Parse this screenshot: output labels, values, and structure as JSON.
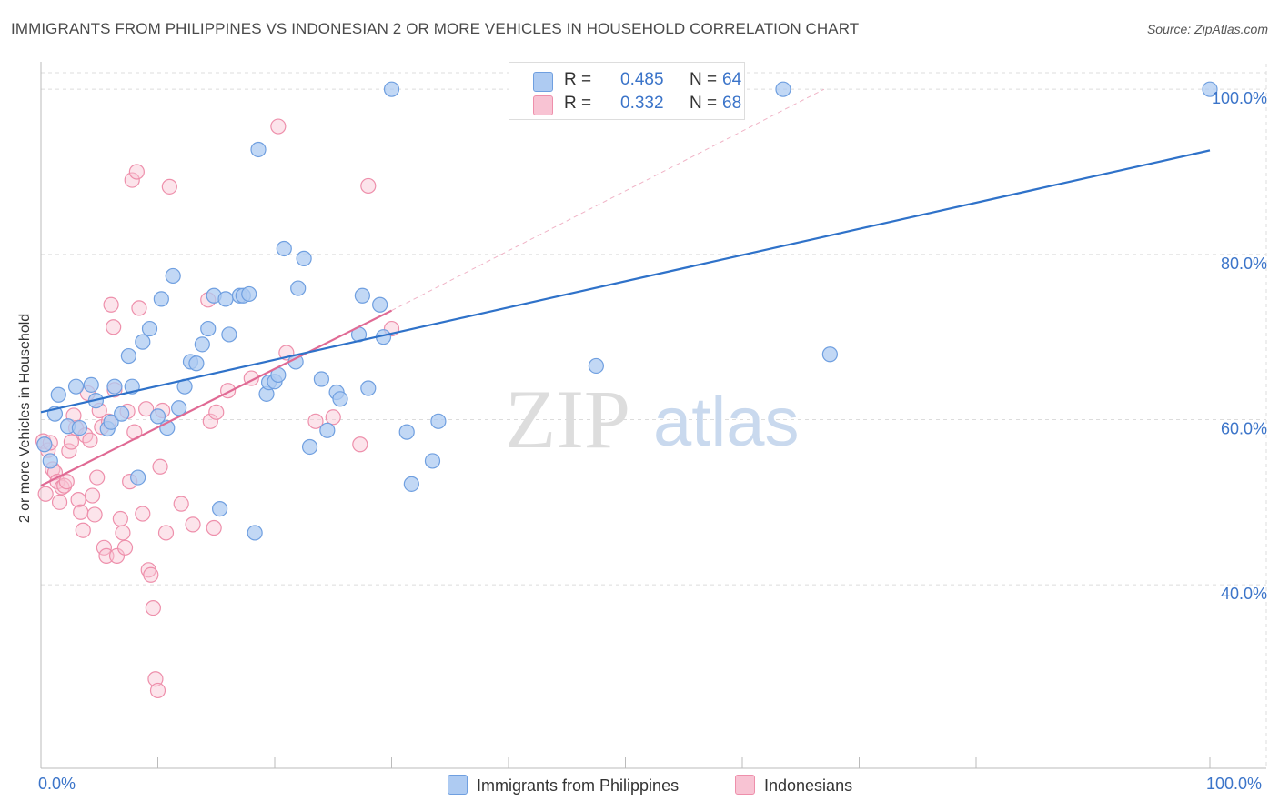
{
  "chart_data": {
    "type": "scatter",
    "title": "IMMIGRANTS FROM PHILIPPINES VS INDONESIAN 2 OR MORE VEHICLES IN HOUSEHOLD CORRELATION CHART",
    "source": "Source: ZipAtlas.com",
    "ylabel": "2 or more Vehicles in Household",
    "xlabel": "",
    "xlim": [
      0,
      100
    ],
    "ylim": [
      18,
      102
    ],
    "y_ticks": [
      40,
      60,
      80,
      100
    ],
    "y_tick_labels": [
      "40.0%",
      "60.0%",
      "80.0%",
      "100.0%"
    ],
    "x_tick_labels": [
      "0.0%",
      "100.0%"
    ],
    "watermark": {
      "zip": "ZIP",
      "atlas": "atlas"
    },
    "legend_stats": [
      {
        "r_label": "R =",
        "r_value": "0.485",
        "n_label": "N =",
        "n_value": "64"
      },
      {
        "r_label": "R =",
        "r_value": "0.332",
        "n_label": "N =",
        "n_value": "68"
      }
    ],
    "series": [
      {
        "name": "Immigrants from Philippines",
        "color": "#6f9fe0",
        "fill": "#aecbf2",
        "line_color": "#2f72c9",
        "trend": {
          "x": [
            0,
            100
          ],
          "y": [
            60.9,
            92.6
          ]
        },
        "points": [
          [
            0.3,
            57.0
          ],
          [
            0.8,
            55.0
          ],
          [
            1.5,
            63.0
          ],
          [
            1.2,
            60.7
          ],
          [
            2.3,
            59.2
          ],
          [
            3.0,
            64.0
          ],
          [
            3.3,
            59.0
          ],
          [
            4.3,
            64.2
          ],
          [
            4.7,
            62.3
          ],
          [
            5.7,
            58.9
          ],
          [
            6.0,
            59.7
          ],
          [
            6.3,
            64.0
          ],
          [
            6.9,
            60.7
          ],
          [
            7.5,
            67.7
          ],
          [
            7.8,
            64.0
          ],
          [
            8.3,
            53.0
          ],
          [
            8.7,
            69.4
          ],
          [
            9.3,
            71.0
          ],
          [
            10.0,
            60.4
          ],
          [
            10.3,
            74.6
          ],
          [
            10.8,
            59.0
          ],
          [
            11.3,
            77.4
          ],
          [
            11.8,
            61.4
          ],
          [
            12.3,
            64.0
          ],
          [
            12.8,
            67.0
          ],
          [
            13.3,
            66.8
          ],
          [
            13.8,
            69.1
          ],
          [
            14.3,
            71.0
          ],
          [
            14.8,
            75.0
          ],
          [
            15.3,
            49.2
          ],
          [
            15.8,
            74.6
          ],
          [
            16.1,
            70.3
          ],
          [
            17.0,
            75.0
          ],
          [
            17.3,
            75.0
          ],
          [
            17.8,
            75.2
          ],
          [
            18.3,
            46.3
          ],
          [
            18.6,
            92.7
          ],
          [
            19.3,
            63.1
          ],
          [
            19.5,
            64.5
          ],
          [
            20.0,
            64.6
          ],
          [
            20.3,
            65.4
          ],
          [
            20.8,
            80.7
          ],
          [
            21.8,
            67.0
          ],
          [
            22.0,
            75.9
          ],
          [
            22.5,
            79.5
          ],
          [
            23.0,
            56.7
          ],
          [
            24.0,
            64.9
          ],
          [
            24.5,
            58.7
          ],
          [
            25.3,
            63.3
          ],
          [
            25.6,
            62.5
          ],
          [
            27.2,
            70.3
          ],
          [
            27.5,
            75.0
          ],
          [
            28.0,
            63.8
          ],
          [
            29.0,
            73.9
          ],
          [
            29.3,
            70.0
          ],
          [
            30.0,
            100.0
          ],
          [
            31.3,
            58.5
          ],
          [
            31.7,
            52.2
          ],
          [
            33.5,
            55.0
          ],
          [
            34.0,
            59.8
          ],
          [
            47.5,
            66.5
          ],
          [
            63.5,
            100.0
          ],
          [
            67.5,
            67.9
          ],
          [
            100.0,
            100.0
          ]
        ]
      },
      {
        "name": "Indonesians",
        "color": "#ee8fab",
        "fill": "#f8c3d3",
        "line_color": "#e06a94",
        "trend": {
          "x": [
            0,
            30
          ],
          "y": [
            52.0,
            73.2
          ]
        },
        "trend_extension": {
          "x": [
            30,
            67
          ],
          "y": [
            73.2,
            100.0
          ]
        },
        "points": [
          [
            0.2,
            57.4
          ],
          [
            0.4,
            51.0
          ],
          [
            0.6,
            56.3
          ],
          [
            0.8,
            57.2
          ],
          [
            1.0,
            54.0
          ],
          [
            1.2,
            53.6
          ],
          [
            1.4,
            52.5
          ],
          [
            1.6,
            50.0
          ],
          [
            1.8,
            51.8
          ],
          [
            2.0,
            52.0
          ],
          [
            2.2,
            52.5
          ],
          [
            2.4,
            56.2
          ],
          [
            2.6,
            57.3
          ],
          [
            2.8,
            60.5
          ],
          [
            3.0,
            59.0
          ],
          [
            3.2,
            50.3
          ],
          [
            3.4,
            48.8
          ],
          [
            3.6,
            46.6
          ],
          [
            3.8,
            58.1
          ],
          [
            4.0,
            63.2
          ],
          [
            4.2,
            57.5
          ],
          [
            4.4,
            50.8
          ],
          [
            4.6,
            48.5
          ],
          [
            4.8,
            53.0
          ],
          [
            5.0,
            61.1
          ],
          [
            5.2,
            59.1
          ],
          [
            5.4,
            44.5
          ],
          [
            5.6,
            43.5
          ],
          [
            5.8,
            59.8
          ],
          [
            6.0,
            73.9
          ],
          [
            6.2,
            71.2
          ],
          [
            6.3,
            63.6
          ],
          [
            6.5,
            43.5
          ],
          [
            6.8,
            48.0
          ],
          [
            7.0,
            46.3
          ],
          [
            7.2,
            44.5
          ],
          [
            7.4,
            61.0
          ],
          [
            7.6,
            52.5
          ],
          [
            7.8,
            89.0
          ],
          [
            8.0,
            58.5
          ],
          [
            8.2,
            90.0
          ],
          [
            8.4,
            73.5
          ],
          [
            8.7,
            48.6
          ],
          [
            9.0,
            61.3
          ],
          [
            9.2,
            41.8
          ],
          [
            9.4,
            41.2
          ],
          [
            9.6,
            37.2
          ],
          [
            9.8,
            28.6
          ],
          [
            10.0,
            27.2
          ],
          [
            10.2,
            54.3
          ],
          [
            10.4,
            61.1
          ],
          [
            10.7,
            46.3
          ],
          [
            11.0,
            88.2
          ],
          [
            12.0,
            49.8
          ],
          [
            13.0,
            47.3
          ],
          [
            14.3,
            74.5
          ],
          [
            14.5,
            59.8
          ],
          [
            14.8,
            46.9
          ],
          [
            15.0,
            60.9
          ],
          [
            16.0,
            63.5
          ],
          [
            18.0,
            65.0
          ],
          [
            20.3,
            95.5
          ],
          [
            21.0,
            68.1
          ],
          [
            23.5,
            59.8
          ],
          [
            25.0,
            60.3
          ],
          [
            27.3,
            57.0
          ],
          [
            28.0,
            88.3
          ],
          [
            30.0,
            71.0
          ]
        ]
      }
    ]
  }
}
